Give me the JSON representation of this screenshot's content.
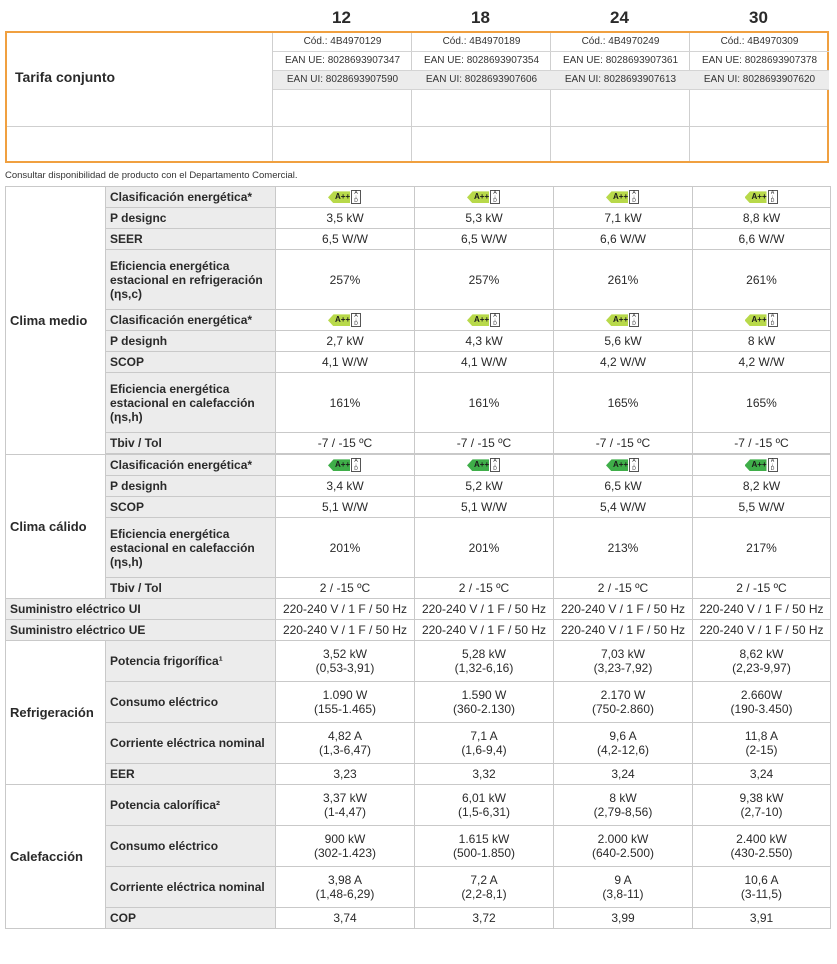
{
  "models": [
    "12",
    "18",
    "24",
    "30"
  ],
  "tarifa": {
    "label": "Tarifa conjunto",
    "cod": [
      "Cód.: 4B4970129",
      "Cód.: 4B4970189",
      "Cód.: 4B4970249",
      "Cód.: 4B4970309"
    ],
    "ean_ue": [
      "EAN UE: 8028693907347",
      "EAN UE: 8028693907354",
      "EAN UE: 8028693907361",
      "EAN UE: 8028693907378"
    ],
    "ean_ui": [
      "EAN UI: 8028693907590",
      "EAN UI: 8028693907606",
      "EAN UI: 8028693907613",
      "EAN UI: 8028693907620"
    ]
  },
  "note": "Consultar disponibilidad de producto con el Departamento Comercial.",
  "energy_badge": {
    "letter": "A+++",
    "scale": "A\nD",
    "colors": {
      "light_green": "#b8d94a",
      "dark_green": "#3fae49"
    }
  },
  "medio": {
    "section": "Clima medio",
    "cool_class_label": "Clasificación energética*",
    "pdesignc_label": "P designc",
    "pdesignc": [
      "3,5 kW",
      "5,3 kW",
      "7,1 kW",
      "8,8 kW"
    ],
    "seer_label": "SEER",
    "seer": [
      "6,5 W/W",
      "6,5 W/W",
      "6,6 W/W",
      "6,6 W/W"
    ],
    "eff_cool_label": "Eficiencia energética estacional en refrigeración (ηs,c)",
    "eff_cool": [
      "257%",
      "257%",
      "261%",
      "261%"
    ],
    "heat_class_label": "Clasificación energética*",
    "pdesignh_label": "P designh",
    "pdesignh": [
      "2,7 kW",
      "4,3 kW",
      "5,6 kW",
      "8 kW"
    ],
    "scop_label": "SCOP",
    "scop": [
      "4,1 W/W",
      "4,1 W/W",
      "4,2 W/W",
      "4,2 W/W"
    ],
    "eff_heat_label": "Eficiencia energética estacional en calefacción (ηs,h)",
    "eff_heat": [
      "161%",
      "161%",
      "165%",
      "165%"
    ],
    "tbiv_label": "Tbiv / Tol",
    "tbiv": [
      "-7 / -15 ºC",
      "-7 / -15 ºC",
      "-7 / -15 ºC",
      "-7 / -15 ºC"
    ]
  },
  "calido": {
    "section": "Clima cálido",
    "class_label": "Clasificación energética*",
    "pdesignh_label": "P designh",
    "pdesignh": [
      "3,4 kW",
      "5,2 kW",
      "6,5 kW",
      "8,2 kW"
    ],
    "scop_label": "SCOP",
    "scop": [
      "5,1 W/W",
      "5,1 W/W",
      "5,4 W/W",
      "5,5 W/W"
    ],
    "eff_heat_label": "Eficiencia energética estacional en calefacción (ηs,h)",
    "eff_heat": [
      "201%",
      "201%",
      "213%",
      "217%"
    ],
    "tbiv_label": "Tbiv / Tol",
    "tbiv": [
      "2 / -15 ºC",
      "2 / -15 ºC",
      "2 / -15 ºC",
      "2 / -15 ºC"
    ]
  },
  "supply_ui_label": "Suministro eléctrico UI",
  "supply_ui": [
    "220-240 V / 1 F / 50 Hz",
    "220-240 V / 1 F / 50 Hz",
    "220-240 V / 1 F / 50 Hz",
    "220-240 V / 1 F / 50 Hz"
  ],
  "supply_ue_label": "Suministro eléctrico UE",
  "supply_ue": [
    "220-240 V / 1 F / 50 Hz",
    "220-240 V / 1 F / 50 Hz",
    "220-240 V / 1 F / 50 Hz",
    "220-240 V / 1 F / 50 Hz"
  ],
  "refrig": {
    "section": "Refrigeración",
    "power_label": "Potencia frigorífica¹",
    "power": [
      "3,52 kW",
      "5,28 kW",
      "7,03 kW",
      "8,62 kW"
    ],
    "power_range": [
      "(0,53-3,91)",
      "(1,32-6,16)",
      "(3,23-7,92)",
      "(2,23-9,97)"
    ],
    "cons_label": "Consumo eléctrico",
    "cons": [
      "1.090 W",
      "1.590 W",
      "2.170 W",
      "2.660W"
    ],
    "cons_range": [
      "(155-1.465)",
      "(360-2.130)",
      "(750-2.860)",
      "(190-3.450)"
    ],
    "curr_label": "Corriente eléctrica nominal",
    "curr": [
      "4,82 A",
      "7,1 A",
      "9,6 A",
      "11,8 A"
    ],
    "curr_range": [
      "(1,3-6,47)",
      "(1,6-9,4)",
      "(4,2-12,6)",
      "(2-15)"
    ],
    "eer_label": "EER",
    "eer": [
      "3,23",
      "3,32",
      "3,24",
      "3,24"
    ]
  },
  "calef": {
    "section": "Calefacción",
    "power_label": "Potencia calorífica²",
    "power": [
      "3,37 kW",
      "6,01 kW",
      "8 kW",
      "9,38 kW"
    ],
    "power_range": [
      "(1-4,47)",
      "(1,5-6,31)",
      "(2,79-8,56)",
      "(2,7-10)"
    ],
    "cons_label": "Consumo eléctrico",
    "cons": [
      "900 kW",
      "1.615 kW",
      "2.000 kW",
      "2.400 kW"
    ],
    "cons_range": [
      "(302-1.423)",
      "(500-1.850)",
      "(640-2.500)",
      "(430-2.550)"
    ],
    "curr_label": "Corriente eléctrica nominal",
    "curr": [
      "3,98 A",
      "7,2 A",
      "9 A",
      "10,6 A"
    ],
    "curr_range": [
      "(1,48-6,29)",
      "(2,2-8,1)",
      "(3,8-11)",
      "(3-11,5)"
    ],
    "cop_label": "COP",
    "cop": [
      "3,74",
      "3,72",
      "3,99",
      "3,91"
    ]
  }
}
